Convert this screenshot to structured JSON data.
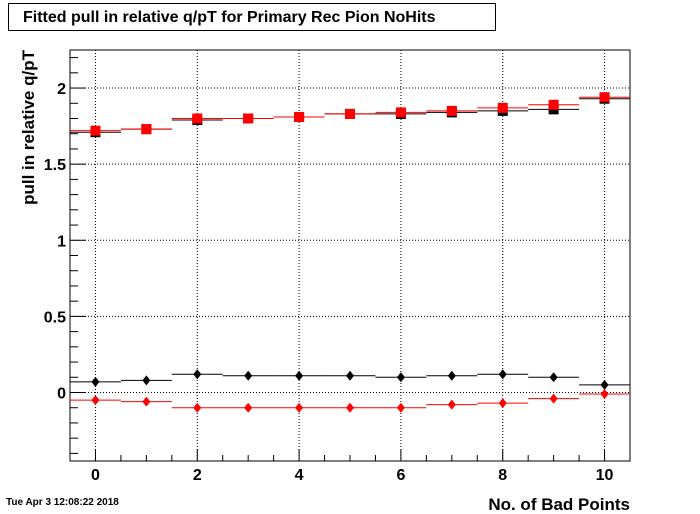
{
  "chart_data": {
    "type": "scatter",
    "title": "Fitted pull in relative q/pT for Primary Rec Pion NoHits",
    "xlabel": "No. of Bad Points",
    "ylabel": "pull in relative q/pT",
    "xlim": [
      -0.5,
      10.5
    ],
    "ylim": [
      -0.45,
      2.25
    ],
    "grid": true,
    "x_ticks": [
      "0",
      "2",
      "4",
      "6",
      "8",
      "10"
    ],
    "y_ticks": [
      "0",
      "0.5",
      "1",
      "1.5",
      "2"
    ],
    "x": [
      0,
      1,
      2,
      3,
      4,
      5,
      6,
      7,
      8,
      9,
      10
    ],
    "series": [
      {
        "marker": "square",
        "color": "#000000",
        "values": [
          1.71,
          1.73,
          1.79,
          1.8,
          1.81,
          1.83,
          1.83,
          1.84,
          1.85,
          1.86,
          1.93
        ]
      },
      {
        "marker": "square",
        "color": "#ff0000",
        "values": [
          1.72,
          1.73,
          1.8,
          1.8,
          1.81,
          1.83,
          1.84,
          1.85,
          1.87,
          1.89,
          1.94
        ]
      },
      {
        "marker": "diamond",
        "color": "#000000",
        "values": [
          0.07,
          0.08,
          0.12,
          0.11,
          0.11,
          0.11,
          0.1,
          0.11,
          0.12,
          0.1,
          0.05
        ]
      },
      {
        "marker": "diamond",
        "color": "#ff0000",
        "values": [
          -0.05,
          -0.06,
          -0.1,
          -0.1,
          -0.1,
          -0.1,
          -0.1,
          -0.08,
          -0.07,
          -0.04,
          -0.01
        ]
      }
    ]
  },
  "footer": {
    "timestamp": "Tue Apr  3 12:08:22 2018"
  }
}
